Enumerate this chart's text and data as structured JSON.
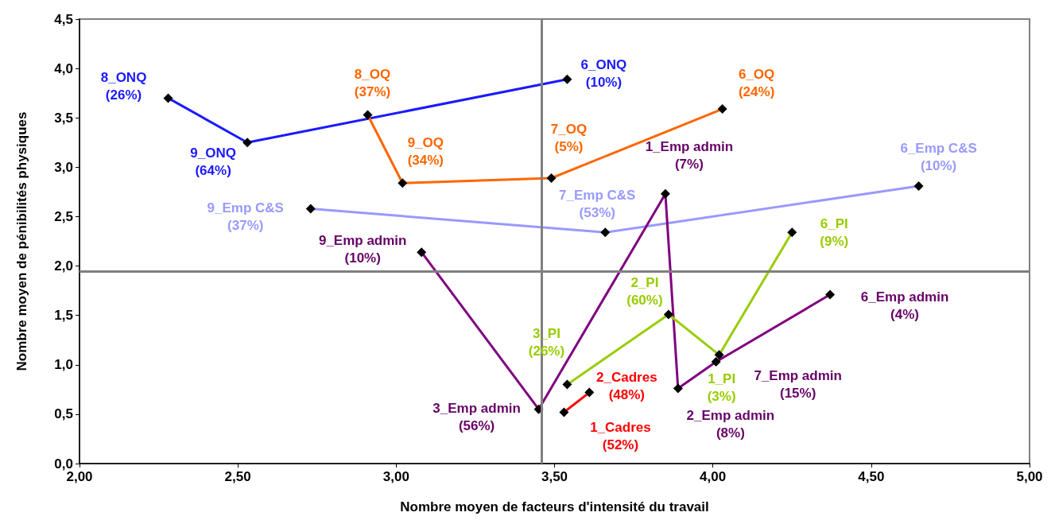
{
  "chart_data": {
    "type": "line",
    "xlabel": "Nombre moyen de facteurs d'intensité du travail",
    "ylabel": "Nombre moyen de pénibilités physiques",
    "marker": "diamond",
    "grid": false,
    "xlim": [
      2,
      5
    ],
    "xticks": [
      {
        "value": 2,
        "label": "2,00"
      },
      {
        "value": 2.5,
        "label": "2,50"
      },
      {
        "value": 3,
        "label": "3,00"
      },
      {
        "value": 3.5,
        "label": "3,50"
      },
      {
        "value": 4,
        "label": "4,00"
      },
      {
        "value": 4.5,
        "label": "4,50"
      },
      {
        "value": 5,
        "label": "5,00"
      }
    ],
    "ylim": [
      0,
      4.5
    ],
    "yticks": [
      {
        "value": 0,
        "label": "0,0"
      },
      {
        "value": 0.5,
        "label": "0,5"
      },
      {
        "value": 1,
        "label": "1,0"
      },
      {
        "value": 1.5,
        "label": "1,5"
      },
      {
        "value": 2,
        "label": "2,0"
      },
      {
        "value": 2.5,
        "label": "2,5"
      },
      {
        "value": 3,
        "label": "3,0"
      },
      {
        "value": 3.5,
        "label": "3,5"
      },
      {
        "value": 4,
        "label": "4,0"
      },
      {
        "value": 4.5,
        "label": "4,5"
      }
    ],
    "series": [
      {
        "color": "#1a1aff",
        "x": [
          2.28,
          2.53,
          3.54
        ],
        "values": [
          3.7,
          3.25,
          3.89
        ]
      },
      {
        "color": "#ff6600",
        "x": [
          2.91,
          3.02,
          3.49,
          4.03
        ],
        "values": [
          3.53,
          2.84,
          2.89,
          3.59
        ]
      },
      {
        "color": "#9999ff",
        "x": [
          2.73,
          3.66,
          4.65
        ],
        "values": [
          2.58,
          2.34,
          2.81
        ]
      },
      {
        "color": "#800080",
        "x": [
          3.08,
          3.45,
          3.85,
          3.89,
          4.01,
          4.37
        ],
        "values": [
          2.14,
          0.55,
          2.73,
          0.76,
          1.03,
          1.71
        ]
      },
      {
        "color": "#99cc00",
        "x": [
          3.54,
          3.86,
          4.02,
          4.25
        ],
        "values": [
          0.8,
          1.51,
          1.1,
          2.34
        ]
      },
      {
        "color": "#ff0000",
        "x": [
          3.53,
          3.61
        ],
        "values": [
          0.52,
          0.72
        ]
      }
    ],
    "ref_lines": [
      {
        "axis": "x",
        "value": 3.46,
        "color": "#808080"
      },
      {
        "axis": "y",
        "value": 1.95,
        "color": "#808080"
      }
    ],
    "annotations": [
      {
        "text": "8_ONQ\n(26%)",
        "x": 2.28,
        "y": 3.7
      },
      {
        "text": "9_ONQ\n(64%)",
        "x": 2.53,
        "y": 3.25
      },
      {
        "text": "6_ONQ\n(10%)",
        "x": 3.54,
        "y": 3.89
      },
      {
        "text": "8_OQ\n(37%)",
        "x": 2.91,
        "y": 3.53
      },
      {
        "text": "9_OQ\n(34%)",
        "x": 3.02,
        "y": 2.84
      },
      {
        "text": "7_OQ\n(5%)",
        "x": 3.49,
        "y": 2.89
      },
      {
        "text": "6_OQ\n(24%)",
        "x": 4.03,
        "y": 3.59
      },
      {
        "text": "9_Emp C&S\n(37%)",
        "x": 2.73,
        "y": 2.58
      },
      {
        "text": "7_Emp C&S\n(53%)",
        "x": 3.66,
        "y": 2.34
      },
      {
        "text": "6_Emp C&S\n(10%)",
        "x": 4.65,
        "y": 2.81
      },
      {
        "text": "9_Emp admin\n(10%)",
        "x": 3.08,
        "y": 2.14
      },
      {
        "text": "3_Emp admin\n(56%)",
        "x": 3.45,
        "y": 0.55
      },
      {
        "text": "1_Emp admin\n(7%)",
        "x": 3.85,
        "y": 2.73
      },
      {
        "text": "2_Emp admin\n(8%)",
        "x": 3.89,
        "y": 0.76
      },
      {
        "text": "7_Emp admin\n(15%)",
        "x": 4.01,
        "y": 1.03
      },
      {
        "text": "6_Emp admin\n(4%)",
        "x": 4.37,
        "y": 1.71
      },
      {
        "text": "3_PI\n(26%)",
        "x": 3.54,
        "y": 0.8
      },
      {
        "text": "2_PI\n(60%)",
        "x": 3.86,
        "y": 1.51
      },
      {
        "text": "1_PI\n(3%)",
        "x": 4.02,
        "y": 1.1
      },
      {
        "text": "6_PI\n(9%)",
        "x": 4.25,
        "y": 2.34
      },
      {
        "text": "1_Cadres\n(52%)",
        "x": 3.53,
        "y": 0.52
      },
      {
        "text": "2_Cadres\n(48%)",
        "x": 3.61,
        "y": 0.72
      }
    ]
  }
}
